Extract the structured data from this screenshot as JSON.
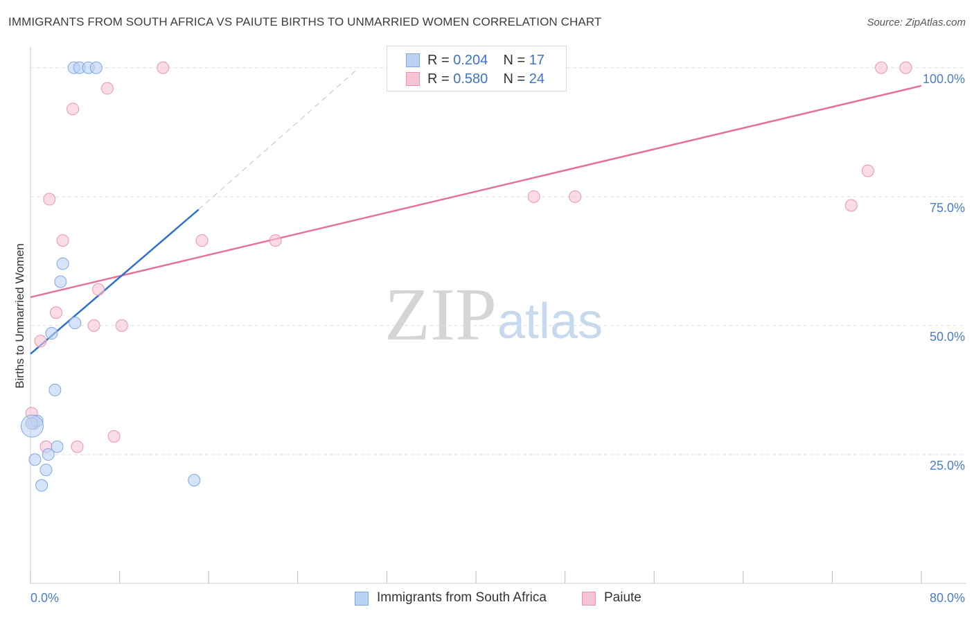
{
  "header": {
    "title": "IMMIGRANTS FROM SOUTH AFRICA VS PAIUTE BIRTHS TO UNMARRIED WOMEN CORRELATION CHART",
    "source": "Source: ZipAtlas.com"
  },
  "watermark": {
    "zip": "ZIP",
    "atlas": "atlas"
  },
  "legend": {
    "rows": [
      {
        "r_label": "R = ",
        "r_value": "0.204",
        "n_label": "N = ",
        "n_value": "17"
      },
      {
        "r_label": "R = ",
        "r_value": "0.580",
        "n_label": "N = ",
        "n_value": "24"
      }
    ]
  },
  "colors": {
    "blue_fill": "#b9d2f3",
    "blue_stroke": "#7ea7e0",
    "blue_line": "#2f6fcf",
    "pink_fill": "#f7c4d3",
    "pink_stroke": "#ec93ae",
    "pink_line": "#e3709a",
    "grid": "#dddddd",
    "axis_text": "#4a7cc7"
  },
  "chart_data": {
    "type": "scatter",
    "title": "IMMIGRANTS FROM SOUTH AFRICA VS PAIUTE BIRTHS TO UNMARRIED WOMEN CORRELATION CHART",
    "xlabel": "",
    "ylabel": "Births to Unmarried Women",
    "xlim": [
      0,
      80
    ],
    "ylim": [
      0,
      104
    ],
    "x_tick_labels": [
      "0.0%",
      "80.0%"
    ],
    "y_ticks": [
      25,
      50,
      75,
      100
    ],
    "y_tick_labels": [
      "25.0%",
      "50.0%",
      "75.0%",
      "100.0%"
    ],
    "grid": true,
    "legend_position": "top-center",
    "series": [
      {
        "name": "Immigrants from South Africa",
        "color": "blue",
        "points": [
          [
            3.9,
            100
          ],
          [
            4.4,
            100
          ],
          [
            5.2,
            100
          ],
          [
            5.9,
            100
          ],
          [
            2.9,
            62.0
          ],
          [
            2.7,
            58.5
          ],
          [
            4.0,
            50.5
          ],
          [
            1.9,
            48.5
          ],
          [
            2.2,
            37.5
          ],
          [
            0.6,
            31.5
          ],
          [
            0.1,
            31.0
          ],
          [
            2.4,
            26.5
          ],
          [
            1.6,
            25.0
          ],
          [
            0.4,
            24.0
          ],
          [
            1.4,
            22.0
          ],
          [
            1.0,
            19.0
          ],
          [
            14.7,
            20.0
          ]
        ],
        "trend": {
          "x": [
            0,
            15.1
          ],
          "y": [
            44.5,
            72.5
          ],
          "dashed_to": [
            29.5,
            100
          ]
        }
      },
      {
        "name": "Paiute",
        "color": "pink",
        "points": [
          [
            11.9,
            100
          ],
          [
            45.9,
            100
          ],
          [
            76.4,
            100
          ],
          [
            78.6,
            100
          ],
          [
            6.9,
            96.0
          ],
          [
            3.8,
            92.0
          ],
          [
            1.7,
            74.5
          ],
          [
            45.2,
            75.0
          ],
          [
            48.9,
            75.0
          ],
          [
            75.2,
            80.0
          ],
          [
            73.7,
            73.3
          ],
          [
            2.9,
            66.5
          ],
          [
            15.4,
            66.5
          ],
          [
            22.0,
            66.5
          ],
          [
            6.1,
            57.0
          ],
          [
            2.3,
            52.5
          ],
          [
            5.7,
            50.0
          ],
          [
            8.2,
            50.0
          ],
          [
            0.9,
            47.0
          ],
          [
            0.1,
            33.0
          ],
          [
            1.4,
            26.5
          ],
          [
            4.2,
            26.5
          ],
          [
            7.5,
            28.5
          ],
          [
            0.3,
            31.0
          ]
        ],
        "trend": {
          "x": [
            0,
            80
          ],
          "y": [
            55.5,
            96.5
          ]
        }
      }
    ]
  },
  "bottom_legend": {
    "items": [
      {
        "label": "Immigrants from South Africa"
      },
      {
        "label": "Paiute"
      }
    ]
  }
}
